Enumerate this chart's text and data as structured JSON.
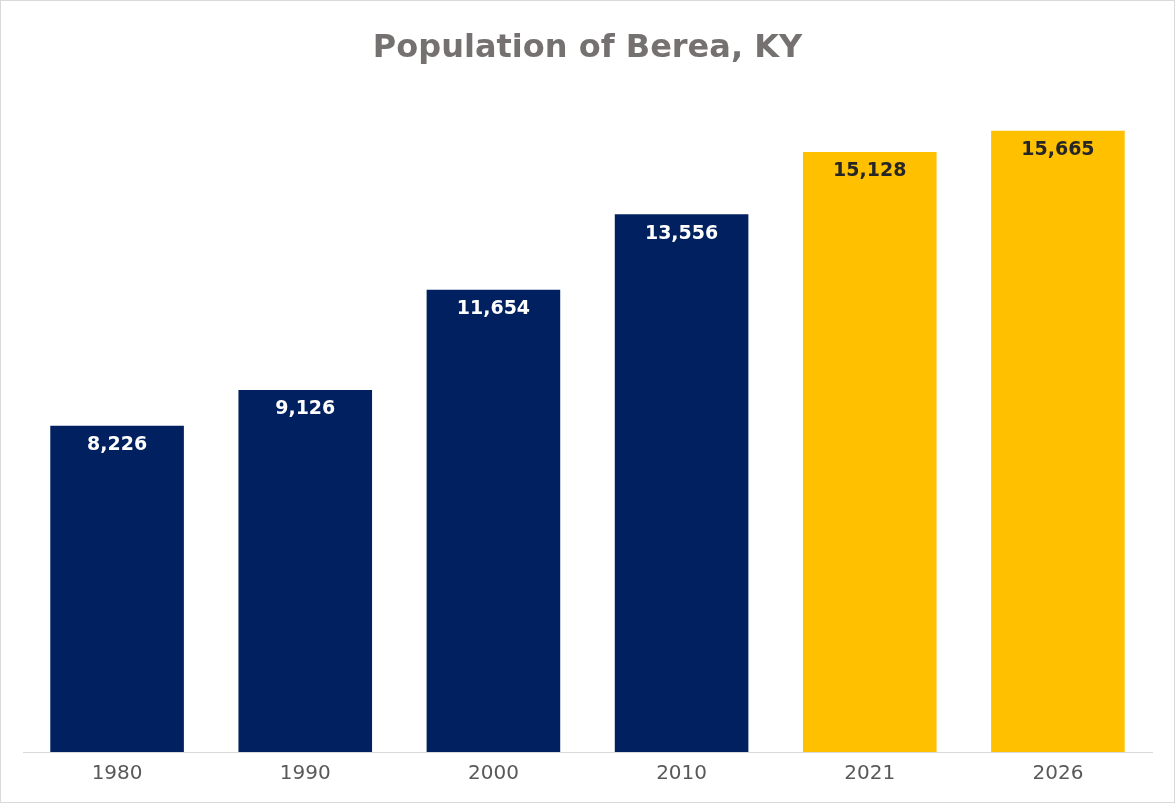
{
  "chart_data": {
    "type": "bar",
    "title": "Population of Berea, KY",
    "categories": [
      "1980",
      "1990",
      "2000",
      "2010",
      "2021",
      "2026"
    ],
    "values": [
      8226,
      9126,
      11654,
      13556,
      15128,
      15665
    ],
    "colors": [
      "#002060",
      "#002060",
      "#002060",
      "#002060",
      "#ffc000",
      "#ffc000"
    ],
    "value_labels": [
      "8,226",
      "9,126",
      "11,654",
      "13,556",
      "15,128",
      "15,665"
    ],
    "grid": false,
    "legend": false,
    "tick_labels": "x"
  }
}
